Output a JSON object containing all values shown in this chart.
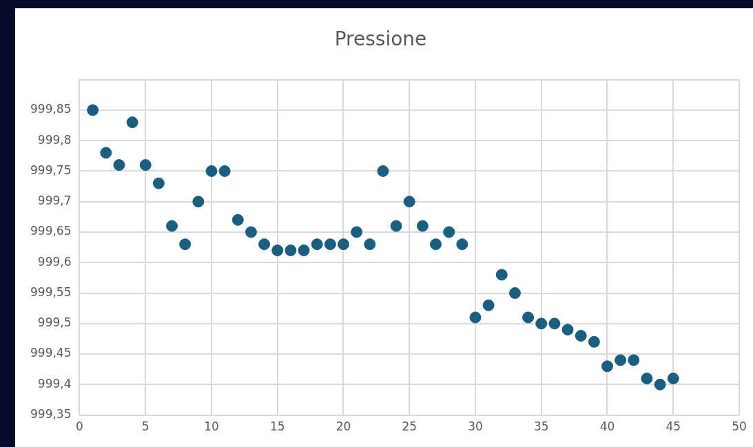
{
  "chart_data": {
    "type": "scatter",
    "title": "Pressione",
    "x": [
      1,
      2,
      3,
      4,
      5,
      6,
      7,
      8,
      9,
      10,
      11,
      12,
      13,
      14,
      15,
      16,
      17,
      18,
      19,
      20,
      21,
      22,
      23,
      24,
      25,
      26,
      27,
      28,
      29,
      30,
      31,
      32,
      33,
      34,
      35,
      36,
      37,
      38,
      39,
      40,
      41,
      42,
      43,
      44,
      45
    ],
    "series": [
      {
        "color": "#1a5f80",
        "values": [
          999.85,
          999.78,
          999.76,
          999.83,
          999.76,
          999.73,
          999.66,
          999.63,
          999.7,
          999.75,
          999.75,
          999.67,
          999.65,
          999.63,
          999.62,
          999.62,
          999.62,
          999.63,
          999.63,
          999.63,
          999.65,
          999.63,
          999.75,
          999.66,
          999.7,
          999.66,
          999.63,
          999.65,
          999.63,
          999.51,
          999.53,
          999.58,
          999.55,
          999.51,
          999.5,
          999.5,
          999.49,
          999.48,
          999.47,
          999.43,
          999.44,
          999.44,
          999.41,
          999.4,
          999.41
        ]
      }
    ],
    "xlim": [
      0,
      50
    ],
    "xticks": [
      0,
      5,
      10,
      15,
      20,
      25,
      30,
      35,
      40,
      45,
      50
    ],
    "ylim": [
      999.35,
      999.9
    ],
    "yticks": [
      {
        "value": 999.35,
        "label": "999,35"
      },
      {
        "value": 999.4,
        "label": "999,4"
      },
      {
        "value": 999.45,
        "label": "999,45"
      },
      {
        "value": 999.5,
        "label": "999,5"
      },
      {
        "value": 999.55,
        "label": "999,55"
      },
      {
        "value": 999.6,
        "label": "999,6"
      },
      {
        "value": 999.65,
        "label": "999,65"
      },
      {
        "value": 999.7,
        "label": "999,7"
      },
      {
        "value": 999.75,
        "label": "999,75"
      },
      {
        "value": 999.8,
        "label": "999,8"
      },
      {
        "value": 999.85,
        "label": "999,85"
      },
      {
        "value": 999.9,
        "label": null
      }
    ],
    "grid": true,
    "legend": false,
    "marker": "circle"
  }
}
